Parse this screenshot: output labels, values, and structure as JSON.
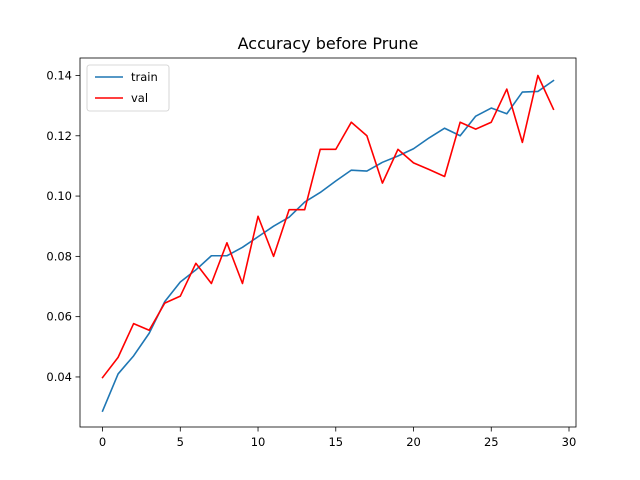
{
  "chart_data": {
    "type": "line",
    "title": "Accuracy before Prune",
    "xlabel": "",
    "ylabel": "",
    "xlim": [
      -1.45,
      30.45
    ],
    "ylim": [
      0.0234,
      0.1458
    ],
    "x_ticks": [
      0,
      5,
      10,
      15,
      20,
      25,
      30
    ],
    "y_ticks": [
      0.04,
      0.06,
      0.08,
      0.1,
      0.12,
      0.14
    ],
    "y_tick_labels": [
      "0.04",
      "0.06",
      "0.08",
      "0.10",
      "0.12",
      "0.14"
    ],
    "grid": false,
    "legend_position": "top-left",
    "x": [
      0,
      1,
      2,
      3,
      4,
      5,
      6,
      7,
      8,
      9,
      10,
      11,
      12,
      13,
      14,
      15,
      16,
      17,
      18,
      19,
      20,
      21,
      22,
      23,
      24,
      25,
      26,
      27,
      28,
      29
    ],
    "series": [
      {
        "name": "train",
        "color": "#1f77b4",
        "values": [
          0.0287,
          0.041,
          0.047,
          0.0545,
          0.065,
          0.0715,
          0.0755,
          0.0802,
          0.0802,
          0.083,
          0.0865,
          0.09,
          0.093,
          0.098,
          0.1012,
          0.105,
          0.1086,
          0.1083,
          0.1112,
          0.1133,
          0.1157,
          0.1193,
          0.1225,
          0.12,
          0.1265,
          0.1292,
          0.1273,
          0.1345,
          0.1347,
          0.1383
        ]
      },
      {
        "name": "val",
        "color": "#ff0000",
        "values": [
          0.0398,
          0.0465,
          0.0577,
          0.0555,
          0.0645,
          0.0668,
          0.0777,
          0.071,
          0.0845,
          0.071,
          0.0933,
          0.08,
          0.0955,
          0.0955,
          0.1155,
          0.1155,
          0.1245,
          0.12,
          0.1043,
          0.1155,
          0.111,
          0.1088,
          0.1065,
          0.1245,
          0.1222,
          0.1245,
          0.1355,
          0.1178,
          0.14,
          0.1288
        ]
      }
    ]
  }
}
